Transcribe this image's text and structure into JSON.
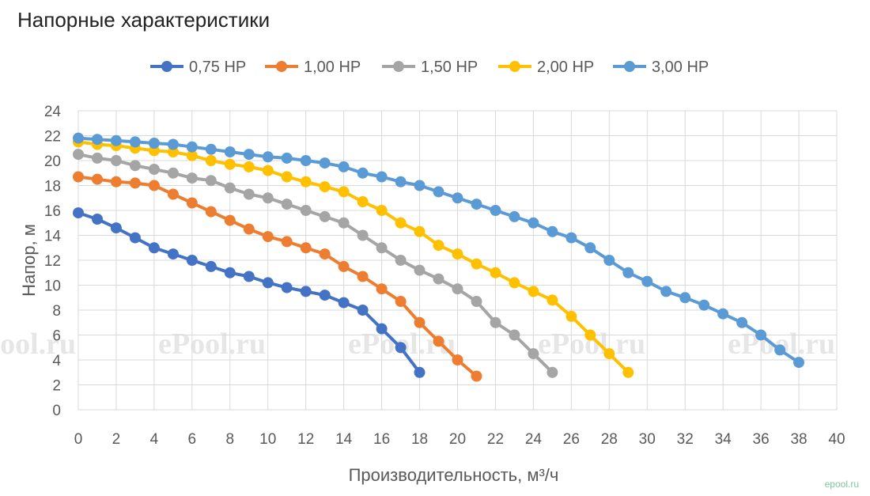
{
  "title": "Напорные характеристики",
  "watermark": "ePool.ru",
  "corner_mark": "epool.ru",
  "chart_data": {
    "type": "line",
    "xlabel": "Производительность, м³/ч",
    "ylabel": "Напор, м",
    "xlim": [
      0,
      40
    ],
    "ylim": [
      0,
      24
    ],
    "xticks": [
      0,
      2,
      4,
      6,
      8,
      10,
      12,
      14,
      16,
      18,
      20,
      22,
      24,
      26,
      28,
      30,
      32,
      34,
      36,
      38,
      40
    ],
    "yticks": [
      0,
      2,
      4,
      6,
      8,
      10,
      12,
      14,
      16,
      18,
      20,
      22,
      24
    ],
    "grid": true,
    "legend_position": "top",
    "series": [
      {
        "name": "0,75 HP",
        "color": "#4472c4",
        "x": [
          0,
          1,
          2,
          3,
          4,
          5,
          6,
          7,
          8,
          9,
          10,
          11,
          12,
          13,
          14,
          15,
          16,
          17,
          18
        ],
        "y": [
          15.8,
          15.3,
          14.6,
          13.8,
          13.0,
          12.5,
          12.0,
          11.5,
          11.0,
          10.7,
          10.2,
          9.8,
          9.5,
          9.2,
          8.6,
          8.0,
          6.5,
          5.0,
          3.0
        ]
      },
      {
        "name": "1,00 HP",
        "color": "#ed7d31",
        "x": [
          0,
          1,
          2,
          3,
          4,
          5,
          6,
          7,
          8,
          9,
          10,
          11,
          12,
          13,
          14,
          15,
          16,
          17,
          18,
          19,
          20,
          21
        ],
        "y": [
          18.7,
          18.5,
          18.3,
          18.2,
          18.0,
          17.3,
          16.6,
          15.9,
          15.2,
          14.5,
          13.9,
          13.5,
          13.0,
          12.5,
          11.5,
          10.7,
          9.7,
          8.7,
          7.0,
          5.5,
          4.0,
          2.7
        ]
      },
      {
        "name": "1,50 HP",
        "color": "#a5a5a5",
        "x": [
          0,
          1,
          2,
          3,
          4,
          5,
          6,
          7,
          8,
          9,
          10,
          11,
          12,
          13,
          14,
          15,
          16,
          17,
          18,
          19,
          20,
          21,
          22,
          23,
          24,
          25
        ],
        "y": [
          20.5,
          20.2,
          20.0,
          19.6,
          19.3,
          19.0,
          18.6,
          18.4,
          17.8,
          17.3,
          17.0,
          16.5,
          16.0,
          15.5,
          15.0,
          14.0,
          13.0,
          12.0,
          11.2,
          10.5,
          9.7,
          8.7,
          7.0,
          6.0,
          4.5,
          3.0
        ]
      },
      {
        "name": "2,00 HP",
        "color": "#ffc000",
        "x": [
          0,
          1,
          2,
          3,
          4,
          5,
          6,
          7,
          8,
          9,
          10,
          11,
          12,
          13,
          14,
          15,
          16,
          17,
          18,
          19,
          20,
          21,
          22,
          23,
          24,
          25,
          26,
          27,
          28,
          29
        ],
        "y": [
          21.5,
          21.3,
          21.2,
          21.0,
          20.8,
          20.7,
          20.4,
          20.0,
          19.7,
          19.5,
          19.2,
          18.7,
          18.3,
          17.9,
          17.5,
          16.7,
          16.0,
          15.0,
          14.3,
          13.2,
          12.5,
          11.7,
          11.0,
          10.2,
          9.5,
          8.8,
          7.5,
          6.0,
          4.5,
          3.0
        ]
      },
      {
        "name": "3,00 HP",
        "color": "#5b9bd5",
        "x": [
          0,
          1,
          2,
          3,
          4,
          5,
          6,
          7,
          8,
          9,
          10,
          11,
          12,
          13,
          14,
          15,
          16,
          17,
          18,
          19,
          20,
          21,
          22,
          23,
          24,
          25,
          26,
          27,
          28,
          29,
          30,
          31,
          32,
          33,
          34,
          35,
          36,
          37,
          38
        ],
        "y": [
          21.8,
          21.7,
          21.6,
          21.5,
          21.4,
          21.3,
          21.1,
          20.9,
          20.7,
          20.5,
          20.3,
          20.2,
          20.0,
          19.8,
          19.5,
          19.0,
          18.7,
          18.3,
          18.0,
          17.5,
          17.0,
          16.5,
          16.0,
          15.5,
          15.0,
          14.3,
          13.8,
          13.0,
          12.0,
          11.0,
          10.3,
          9.5,
          9.0,
          8.4,
          7.7,
          7.0,
          6.0,
          4.8,
          3.8
        ]
      }
    ]
  }
}
